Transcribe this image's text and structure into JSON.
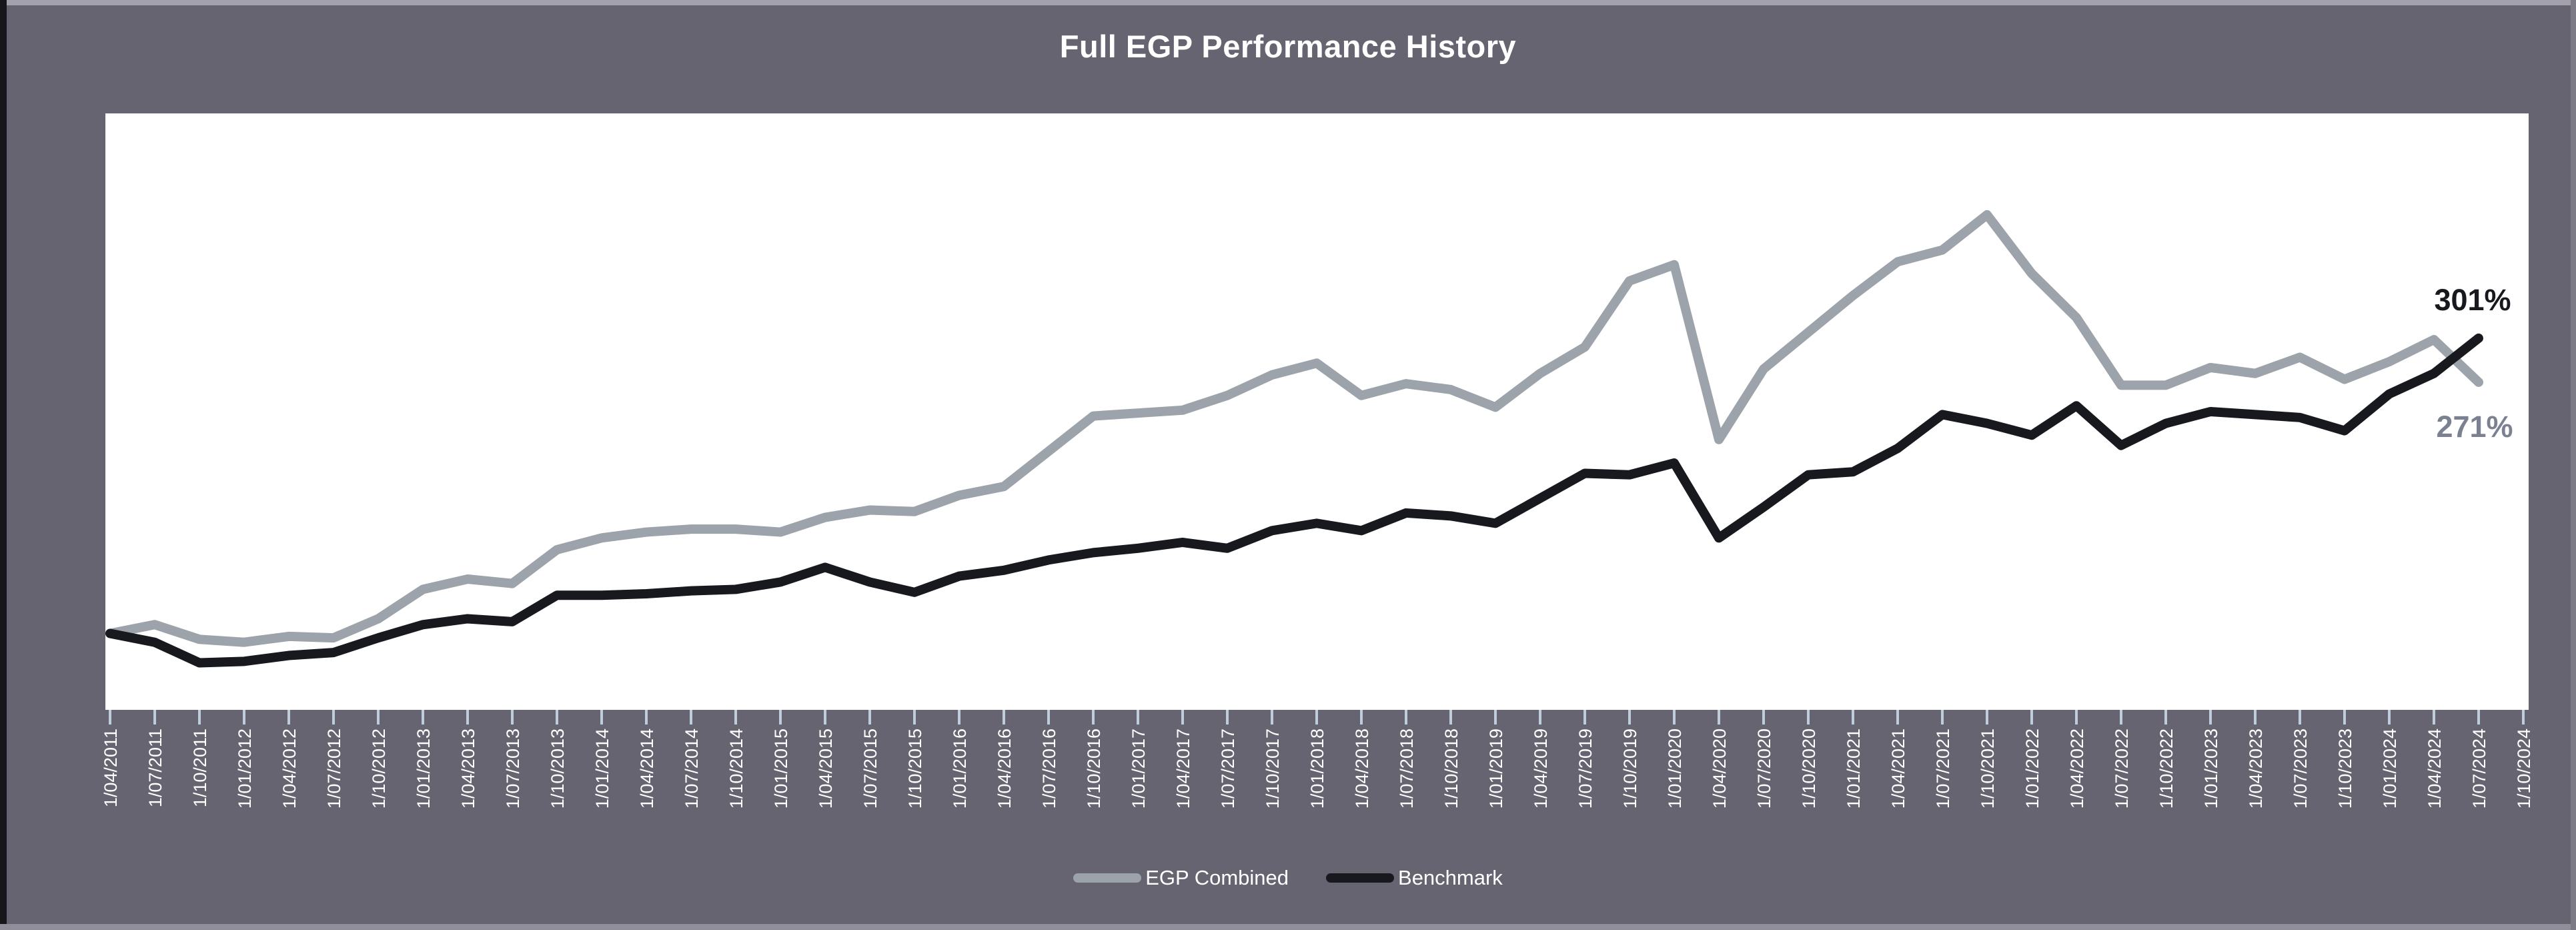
{
  "title": "Full EGP Performance History",
  "colors": {
    "background": "#656470",
    "plot_background": "#ffffff",
    "egp_line": "#9ca3ab",
    "benchmark_line": "#17191e",
    "tick": "#bfccdb",
    "axis_text": "#ffffff",
    "end_label_benchmark": "#17191e",
    "end_label_egp": "#7b8190"
  },
  "end_labels": {
    "benchmark": "301%",
    "egp": "271%"
  },
  "legend": [
    {
      "label": "EGP Combined",
      "color": "#9ca3ab"
    },
    {
      "label": "Benchmark",
      "color": "#17191e"
    }
  ],
  "chart_data": {
    "type": "line",
    "title": "Full EGP Performance History",
    "xlabel": "",
    "ylabel": "",
    "y_axis_visible": false,
    "grid": false,
    "legend_position": "bottom-center",
    "units": "percent of initial value (start = 100%)",
    "x_tick_labels": [
      "1/04/2011",
      "1/07/2011",
      "1/10/2011",
      "1/01/2012",
      "1/04/2012",
      "1/07/2012",
      "1/10/2012",
      "1/01/2013",
      "1/04/2013",
      "1/07/2013",
      "1/10/2013",
      "1/01/2014",
      "1/04/2014",
      "1/07/2014",
      "1/10/2014",
      "1/01/2015",
      "1/04/2015",
      "1/07/2015",
      "1/10/2015",
      "1/01/2016",
      "1/04/2016",
      "1/07/2016",
      "1/10/2016",
      "1/01/2017",
      "1/04/2017",
      "1/07/2017",
      "1/10/2017",
      "1/01/2018",
      "1/04/2018",
      "1/07/2018",
      "1/10/2018",
      "1/01/2019",
      "1/04/2019",
      "1/07/2019",
      "1/10/2019",
      "1/01/2020",
      "1/04/2020",
      "1/07/2020",
      "1/10/2020",
      "1/01/2021",
      "1/04/2021",
      "1/07/2021",
      "1/10/2021",
      "1/01/2022",
      "1/04/2022",
      "1/07/2022",
      "1/10/2022",
      "1/01/2023",
      "1/04/2023",
      "1/07/2023",
      "1/10/2023",
      "1/01/2024",
      "1/04/2024",
      "1/07/2024",
      "1/10/2024"
    ],
    "series": [
      {
        "name": "EGP Combined",
        "final_label": "271%",
        "values": [
          100,
          106,
          96,
          94,
          98,
          97,
          110,
          130,
          137,
          134,
          157,
          165,
          169,
          171,
          171,
          169,
          179,
          184,
          183,
          194,
          200,
          224,
          248,
          250,
          252,
          262,
          276,
          284,
          262,
          270,
          266,
          254,
          277,
          295,
          340,
          351,
          232,
          280,
          305,
          330,
          353,
          361,
          385,
          345,
          315,
          269,
          269,
          281,
          277,
          288,
          273,
          285,
          300,
          271,
          null
        ]
      },
      {
        "name": "Benchmark",
        "final_label": "301%",
        "values": [
          100,
          94,
          80,
          81,
          85,
          87,
          97,
          106,
          110,
          108,
          126,
          126,
          127,
          129,
          130,
          135,
          145,
          135,
          128,
          139,
          143,
          150,
          155,
          158,
          162,
          158,
          170,
          175,
          170,
          182,
          180,
          175,
          192,
          209,
          208,
          216,
          165,
          186,
          208,
          210,
          226,
          249,
          243,
          235,
          255,
          228,
          243,
          251,
          249,
          247,
          238,
          263,
          277,
          301,
          null
        ]
      }
    ]
  }
}
